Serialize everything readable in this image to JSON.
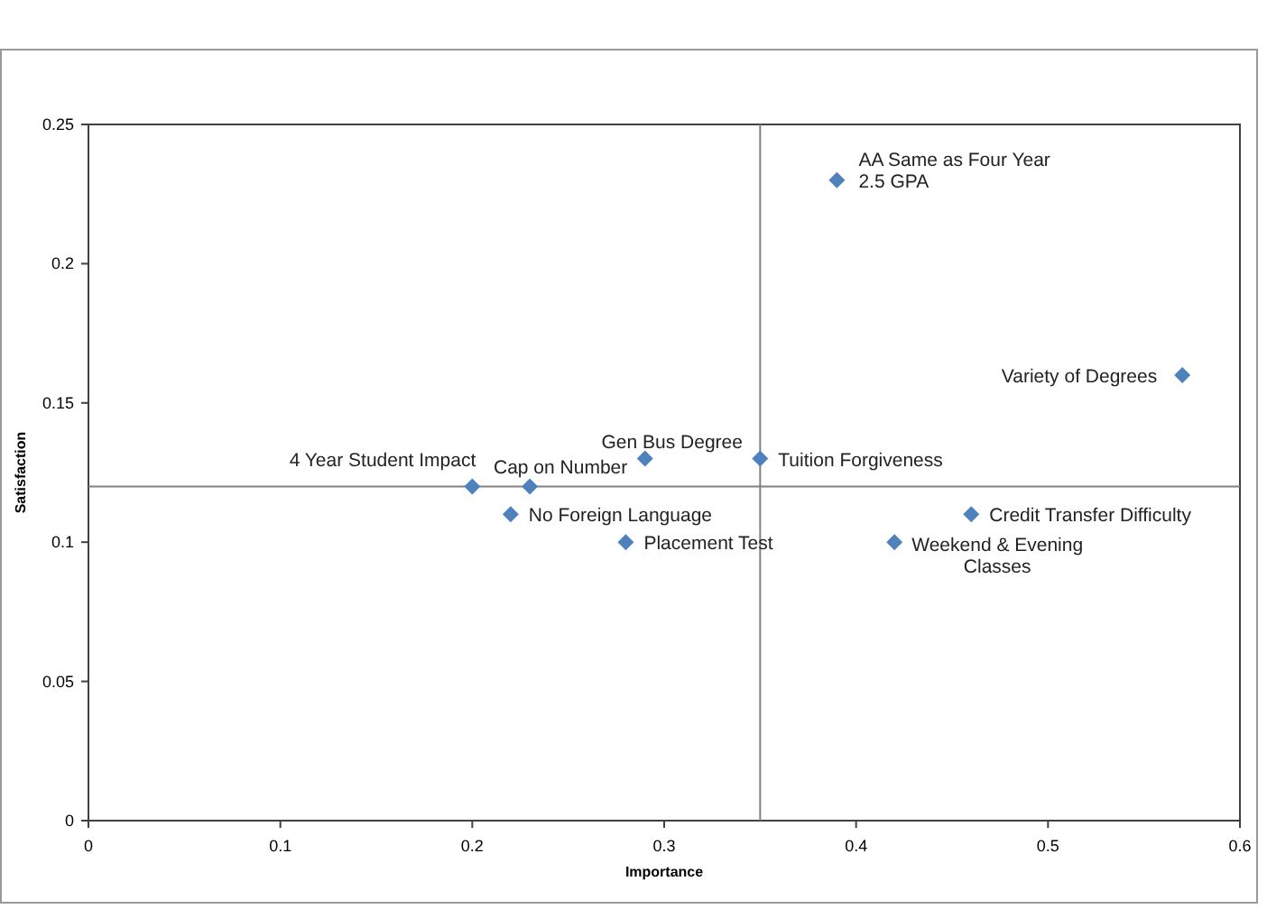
{
  "chart_data": {
    "type": "scatter",
    "xlabel": "Importance",
    "ylabel": "Satisfaction",
    "x": [
      0.2,
      0.23,
      0.22,
      0.28,
      0.29,
      0.35,
      0.39,
      0.57,
      0.46,
      0.42
    ],
    "series": [
      {
        "color": "#4f81bd",
        "values": [
          0.12,
          0.12,
          0.11,
          0.1,
          0.13,
          0.13,
          0.23,
          0.16,
          0.11,
          0.1
        ]
      }
    ],
    "marker": "diamond",
    "xlim": [
      0,
      0.6
    ],
    "xticks": [
      0,
      0.1,
      0.2,
      0.3,
      0.4,
      0.5,
      0.6
    ],
    "ylim": [
      0,
      0.25
    ],
    "yticks": [
      0,
      0.05,
      0.1,
      0.15,
      0.2,
      0.25
    ],
    "ref_lines": [
      {
        "axis": "x",
        "value": 0.35,
        "color": "#808080"
      },
      {
        "axis": "y",
        "value": 0.12,
        "color": "#808080"
      }
    ],
    "annotations": [
      {
        "text": "4 Year Student Impact",
        "x": 0.2,
        "y": 0.12
      },
      {
        "text": "Cap on Number",
        "x": 0.23,
        "y": 0.12
      },
      {
        "text": "No Foreign Language",
        "x": 0.22,
        "y": 0.11
      },
      {
        "text": "Placement Test",
        "x": 0.28,
        "y": 0.1
      },
      {
        "text": "Gen Bus Degree",
        "x": 0.29,
        "y": 0.13
      },
      {
        "text": "Tuition Forgiveness",
        "x": 0.35,
        "y": 0.13
      },
      {
        "text": "AA Same as Four Year\n2.5 GPA",
        "x": 0.39,
        "y": 0.23
      },
      {
        "text": "Variety of Degrees",
        "x": 0.57,
        "y": 0.16
      },
      {
        "text": "Credit Transfer  Difficulty",
        "x": 0.46,
        "y": 0.11
      },
      {
        "text": "Weekend & Evening\nClasses",
        "x": 0.42,
        "y": 0.1
      }
    ]
  }
}
